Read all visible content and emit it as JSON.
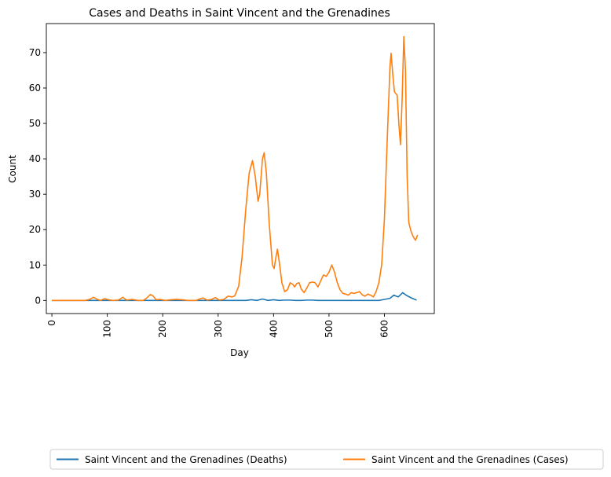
{
  "chart_data": {
    "type": "line",
    "title": "Cases and Deaths in Saint Vincent and the Grenadines",
    "xlabel": "Day",
    "ylabel": "Count",
    "xlim": [
      -10,
      690
    ],
    "ylim": [
      -3.7,
      78.2
    ],
    "x_ticks": [
      0,
      100,
      200,
      300,
      400,
      500,
      600
    ],
    "y_ticks": [
      0,
      10,
      20,
      30,
      40,
      50,
      60,
      70
    ],
    "grid": false,
    "legend_position": "bottom-center",
    "series": [
      {
        "name": "Saint Vincent and the Grenadines (Deaths)",
        "color": "#1f77b4",
        "points": [
          [
            0,
            0
          ],
          [
            100,
            0
          ],
          [
            200,
            0
          ],
          [
            300,
            0
          ],
          [
            350,
            0
          ],
          [
            360,
            0.2
          ],
          [
            370,
            0
          ],
          [
            380,
            0.4
          ],
          [
            390,
            0
          ],
          [
            400,
            0.2
          ],
          [
            410,
            0
          ],
          [
            420,
            0.1
          ],
          [
            430,
            0.1
          ],
          [
            440,
            0
          ],
          [
            450,
            0
          ],
          [
            460,
            0.1
          ],
          [
            470,
            0.1
          ],
          [
            480,
            0
          ],
          [
            500,
            0
          ],
          [
            550,
            0
          ],
          [
            590,
            0
          ],
          [
            600,
            0.3
          ],
          [
            610,
            0.6
          ],
          [
            617,
            1.5
          ],
          [
            625,
            1.0
          ],
          [
            633,
            2.2
          ],
          [
            640,
            1.4
          ],
          [
            650,
            0.6
          ],
          [
            658,
            0.1
          ]
        ]
      },
      {
        "name": "Saint Vincent and the Grenadines (Cases)",
        "color": "#ff7f0e",
        "points": [
          [
            0,
            0
          ],
          [
            40,
            0
          ],
          [
            60,
            0
          ],
          [
            68,
            0.3
          ],
          [
            75,
            0.9
          ],
          [
            82,
            0.3
          ],
          [
            88,
            0
          ],
          [
            95,
            0.5
          ],
          [
            102,
            0.2
          ],
          [
            110,
            0
          ],
          [
            120,
            0.1
          ],
          [
            128,
            0.9
          ],
          [
            135,
            0.1
          ],
          [
            145,
            0.3
          ],
          [
            155,
            0
          ],
          [
            165,
            0
          ],
          [
            172,
            0.8
          ],
          [
            178,
            1.7
          ],
          [
            183,
            1.2
          ],
          [
            188,
            0.2
          ],
          [
            195,
            0.3
          ],
          [
            205,
            0
          ],
          [
            215,
            0.2
          ],
          [
            225,
            0.3
          ],
          [
            235,
            0.2
          ],
          [
            245,
            0
          ],
          [
            260,
            0
          ],
          [
            268,
            0.5
          ],
          [
            273,
            0.7
          ],
          [
            280,
            0.1
          ],
          [
            288,
            0.3
          ],
          [
            295,
            0.8
          ],
          [
            302,
            0.1
          ],
          [
            310,
            0.3
          ],
          [
            318,
            1.2
          ],
          [
            325,
            1.0
          ],
          [
            330,
            1.3
          ],
          [
            337,
            4
          ],
          [
            343,
            12
          ],
          [
            350,
            26
          ],
          [
            356,
            36
          ],
          [
            362,
            39.5
          ],
          [
            367,
            35
          ],
          [
            372,
            28
          ],
          [
            375,
            30
          ],
          [
            380,
            40
          ],
          [
            383,
            41.7
          ],
          [
            387,
            36
          ],
          [
            392,
            22
          ],
          [
            398,
            10
          ],
          [
            401,
            9
          ],
          [
            404,
            12
          ],
          [
            407,
            14.5
          ],
          [
            411,
            10
          ],
          [
            415,
            5
          ],
          [
            420,
            2.5
          ],
          [
            425,
            3
          ],
          [
            430,
            5
          ],
          [
            435,
            4.5
          ],
          [
            438,
            3.8
          ],
          [
            442,
            4.8
          ],
          [
            446,
            5
          ],
          [
            450,
            3.2
          ],
          [
            455,
            2.2
          ],
          [
            460,
            3.5
          ],
          [
            465,
            5
          ],
          [
            470,
            5.2
          ],
          [
            475,
            5
          ],
          [
            480,
            3.8
          ],
          [
            485,
            5.5
          ],
          [
            490,
            7.2
          ],
          [
            495,
            6.8
          ],
          [
            500,
            8
          ],
          [
            505,
            10
          ],
          [
            510,
            8
          ],
          [
            515,
            5
          ],
          [
            520,
            3
          ],
          [
            525,
            2
          ],
          [
            530,
            1.8
          ],
          [
            535,
            1.5
          ],
          [
            540,
            2.2
          ],
          [
            545,
            2
          ],
          [
            550,
            2.2
          ],
          [
            555,
            2.5
          ],
          [
            560,
            1.6
          ],
          [
            565,
            1.2
          ],
          [
            570,
            1.8
          ],
          [
            575,
            1.5
          ],
          [
            580,
            1.0
          ],
          [
            585,
            2.5
          ],
          [
            590,
            5
          ],
          [
            595,
            10
          ],
          [
            600,
            23
          ],
          [
            605,
            45
          ],
          [
            610,
            66
          ],
          [
            612,
            69.8
          ],
          [
            615,
            64
          ],
          [
            618,
            59
          ],
          [
            620,
            58.5
          ],
          [
            623,
            58
          ],
          [
            626,
            50
          ],
          [
            629,
            44
          ],
          [
            632,
            57
          ],
          [
            635,
            74.5
          ],
          [
            638,
            65
          ],
          [
            641,
            35
          ],
          [
            644,
            22
          ],
          [
            648,
            19.5
          ],
          [
            652,
            18
          ],
          [
            656,
            17
          ],
          [
            660,
            18.5
          ]
        ]
      }
    ]
  }
}
